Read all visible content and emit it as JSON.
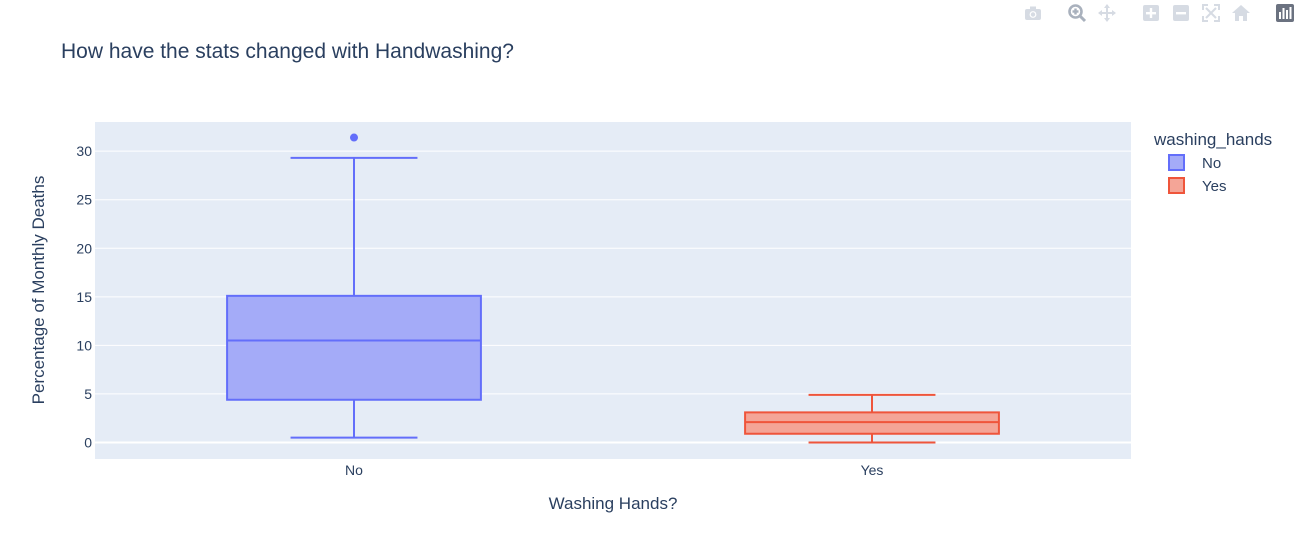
{
  "modebar": {
    "buttons": [
      {
        "name": "camera-icon",
        "label": "Download plot as a png"
      },
      {
        "name": "zoom-icon",
        "label": "Zoom"
      },
      {
        "name": "pan-icon",
        "label": "Pan"
      },
      {
        "name": "zoom-in-icon",
        "label": "Zoom in"
      },
      {
        "name": "zoom-out-icon",
        "label": "Zoom out"
      },
      {
        "name": "autoscale-icon",
        "label": "Autoscale"
      },
      {
        "name": "home-icon",
        "label": "Reset axes"
      },
      {
        "name": "plotly-logo-icon",
        "label": "Produced with Plotly"
      }
    ]
  },
  "chart_data": {
    "type": "box",
    "title": "How have the stats changed with Handwashing?",
    "xlabel": "Washing Hands?",
    "ylabel": "Percentage of Monthly Deaths",
    "categories": [
      "No",
      "Yes"
    ],
    "ylim": [
      -1.7,
      33
    ],
    "yticks": [
      0,
      5,
      10,
      15,
      20,
      25,
      30
    ],
    "grid": true,
    "legend": {
      "title": "washing_hands",
      "position": "top-right"
    },
    "series": [
      {
        "name": "No",
        "category": "No",
        "color": "#636efa",
        "fill": "#a4abf8",
        "min": 0.5,
        "q1": 4.4,
        "median": 10.5,
        "q3": 15.1,
        "max": 29.3,
        "outliers": [
          31.4
        ]
      },
      {
        "name": "Yes",
        "category": "Yes",
        "color": "#ef553b",
        "fill": "#f4a597",
        "min": 0.0,
        "q1": 0.9,
        "median": 2.1,
        "q3": 3.1,
        "max": 4.9,
        "outliers": []
      }
    ]
  }
}
